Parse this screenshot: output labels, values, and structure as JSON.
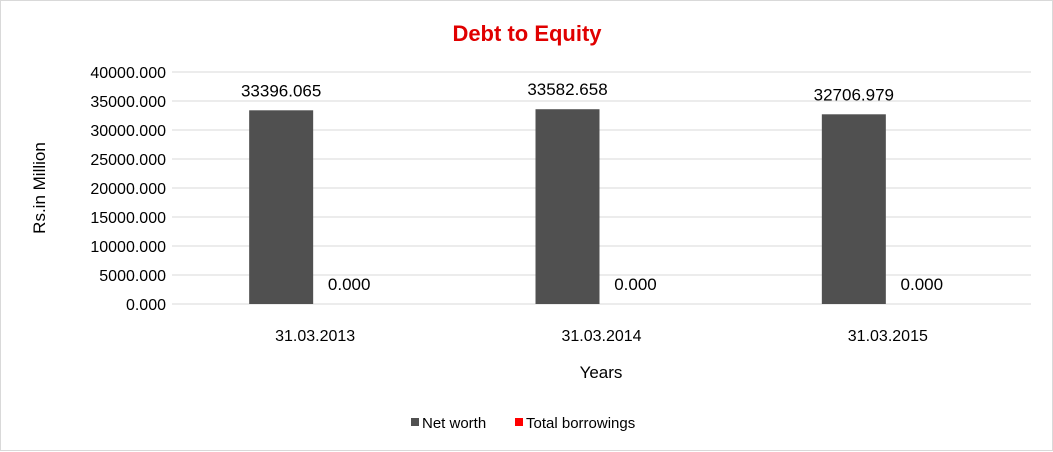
{
  "chart_data": {
    "type": "bar",
    "title": "Debt to Equity",
    "xlabel": "Years",
    "ylabel": "Rs.in Million",
    "categories": [
      "31.03.2013",
      "31.03.2014",
      "31.03.2015"
    ],
    "series": [
      {
        "name": "Net worth",
        "color": "#505050",
        "values": [
          33396.065,
          33582.658,
          32706.979
        ],
        "labels": [
          "33396.065",
          "33582.658",
          "32706.979"
        ]
      },
      {
        "name": "Total borrowings",
        "color": "#ff0000",
        "values": [
          0,
          0,
          0
        ],
        "labels": [
          "0.000",
          "0.000",
          "0.000"
        ]
      }
    ],
    "ylim": [
      0,
      40000
    ],
    "yticks": [
      "0.000",
      "5000.000",
      "10000.000",
      "15000.000",
      "20000.000",
      "25000.000",
      "30000.000",
      "35000.000",
      "40000.000"
    ],
    "grid": true,
    "legend_position": "bottom",
    "title_color": "#e00000"
  }
}
